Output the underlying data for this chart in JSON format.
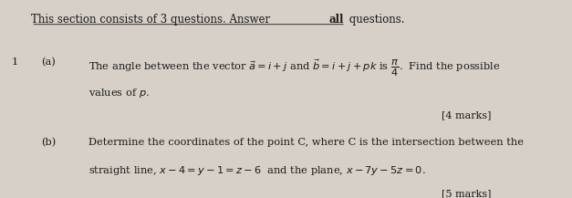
{
  "bg_color": "#d6d0c8",
  "text_color": "#1a1a1a",
  "header": "This section consists of 3 questions. Answer all questions.",
  "header_bold_word": "all",
  "question_number": "1",
  "part_a_label": "(a)",
  "part_a_line1": "The angle between the vector $\\vec{a}=i+j$ and $\\vec{b}=i+j+pk$ is $\\dfrac{\\pi}{4}$.  Find the possible",
  "part_a_line2": "values of $p$.",
  "part_a_marks": "[4 marks]",
  "part_b_label": "(b)",
  "part_b_line1": "Determine the coordinates of the point C, where C is the intersection between the",
  "part_b_line2": "straight line, $x-4=y-1=z-6$  and the plane, $x-7y-5z=0$.",
  "part_b_marks": "[5 marks]",
  "font_size_header": 8.5,
  "font_size_body": 8.2,
  "font_size_marks": 8.0
}
